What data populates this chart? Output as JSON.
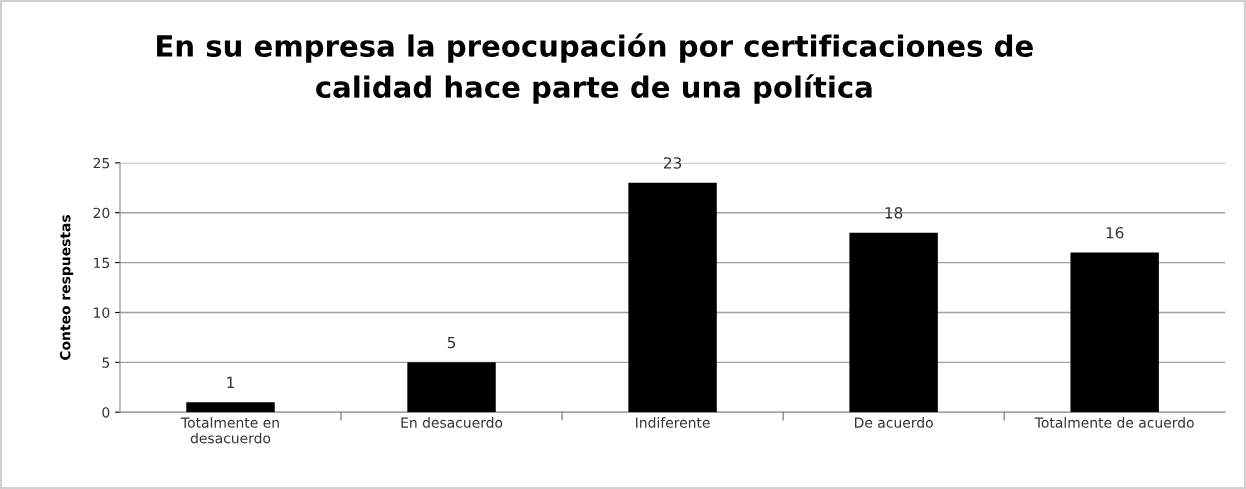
{
  "chart_data": {
    "type": "bar",
    "title": "En su empresa la preocupación por certificaciones de\ncalidad hace parte de una política",
    "ylabel": "Conteo respuestas",
    "categories": [
      "Totalmente en\ndesacuerdo",
      "En desacuerdo",
      "Indiferente",
      "De acuerdo",
      "Totalmente de acuerdo"
    ],
    "values": [
      1,
      5,
      23,
      18,
      16
    ],
    "color": "#000000",
    "ylim": [
      0,
      25
    ],
    "yticks": [
      0,
      5,
      10,
      15,
      20,
      25
    ],
    "grid": "y",
    "data_labels": true
  }
}
